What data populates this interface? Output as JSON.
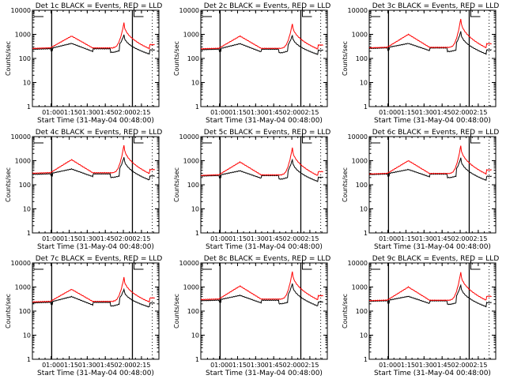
{
  "chart_data": {
    "type": "line",
    "layout": "3x3 grid",
    "y_scale": "log",
    "ylim": [
      1,
      10000
    ],
    "ylabel": "Counts/sec",
    "xlabel": "Start Time (31-May-04 00:48:00)",
    "x_tick_labels": [
      "01:00",
      "01:15",
      "01:30",
      "01:45",
      "02:00",
      "02:15"
    ],
    "x_tick_minutes": [
      60,
      75,
      90,
      105,
      120,
      135
    ],
    "xlim_minutes": [
      44.5,
      149.5
    ],
    "y_tick_labels": [
      "1",
      "10",
      "100",
      "1000",
      "10000"
    ],
    "y_tick_values": [
      1,
      10,
      100,
      1000,
      10000
    ],
    "vertical_markers": [
      {
        "minute": 60.5,
        "style": "solid"
      },
      {
        "minute": 127.5,
        "style": "solid"
      },
      {
        "minute": 144,
        "style": "dotted"
      }
    ],
    "colors": {
      "events": "#000000",
      "lld": "#ff0000"
    },
    "panels": [
      {
        "title": "Det 1c BLACK = Events, RED = LLD",
        "base_ev": 240,
        "base_lld": 260,
        "hump_ev": 420,
        "hump_lld": 850,
        "peak_ev": 950,
        "peak_lld": 3000,
        "tail_ev": 150,
        "tail_lld": 250
      },
      {
        "title": "Det 2c BLACK = Events, RED = LLD",
        "base_ev": 230,
        "base_lld": 250,
        "hump_ev": 410,
        "hump_lld": 850,
        "peak_ev": 900,
        "peak_lld": 2800,
        "tail_ev": 145,
        "tail_lld": 240
      },
      {
        "title": "Det 3c BLACK = Events, RED = LLD",
        "base_ev": 260,
        "base_lld": 275,
        "hump_ev": 420,
        "hump_lld": 1000,
        "peak_ev": 1300,
        "peak_lld": 4500,
        "tail_ev": 150,
        "tail_lld": 270
      },
      {
        "title": "Det 4c BLACK = Events, RED = LLD",
        "base_ev": 270,
        "base_lld": 300,
        "hump_ev": 450,
        "hump_lld": 1100,
        "peak_ev": 1400,
        "peak_lld": 4500,
        "tail_ev": 155,
        "tail_lld": 285
      },
      {
        "title": "Det 5c BLACK = Events, RED = LLD",
        "base_ev": 230,
        "base_lld": 245,
        "hump_ev": 380,
        "hump_lld": 880,
        "peak_ev": 1100,
        "peak_lld": 3500,
        "tail_ev": 135,
        "tail_lld": 235
      },
      {
        "title": "Det 6c BLACK = Events, RED = LLD",
        "base_ev": 265,
        "base_lld": 280,
        "hump_ev": 430,
        "hump_lld": 1000,
        "peak_ev": 1300,
        "peak_lld": 4200,
        "tail_ev": 150,
        "tail_lld": 275
      },
      {
        "title": "Det 7c BLACK = Events, RED = LLD",
        "base_ev": 220,
        "base_lld": 240,
        "hump_ev": 400,
        "hump_lld": 800,
        "peak_ev": 800,
        "peak_lld": 2500,
        "tail_ev": 145,
        "tail_lld": 235
      },
      {
        "title": "Det 8c BLACK = Events, RED = LLD",
        "base_ev": 270,
        "base_lld": 300,
        "hump_ev": 450,
        "hump_lld": 1100,
        "peak_ev": 1400,
        "peak_lld": 4500,
        "tail_ev": 160,
        "tail_lld": 290
      },
      {
        "title": "Det 9c BLACK = Events, RED = LLD",
        "base_ev": 255,
        "base_lld": 270,
        "hump_ev": 410,
        "hump_lld": 1000,
        "peak_ev": 1200,
        "peak_lld": 4200,
        "tail_ev": 150,
        "tail_lld": 275
      }
    ]
  }
}
